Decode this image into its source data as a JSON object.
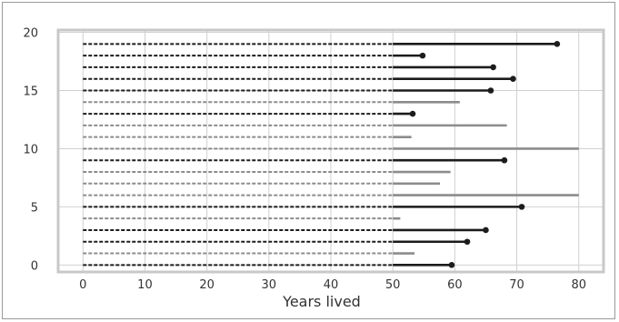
{
  "chart_data": {
    "type": "lifelines",
    "title": "",
    "xlabel": "Years lived",
    "ylabel": "",
    "xlim": [
      -4,
      84
    ],
    "ylim": [
      -0.6,
      20.2
    ],
    "xticks": [
      0,
      10,
      20,
      30,
      40,
      50,
      60,
      70,
      80
    ],
    "yticks": [
      0,
      5,
      10,
      15,
      20
    ],
    "grid": true,
    "legend": "none",
    "colors": {
      "observed": "#1c1c1c",
      "censored": "#8c8c8c",
      "grid": "#d0d0d0",
      "frame": "#c8c8c8"
    },
    "subjects": [
      {
        "y": 0,
        "start": 0,
        "obs_start": 50,
        "end": 59.5,
        "observed": true
      },
      {
        "y": 1,
        "start": 0,
        "obs_start": 50,
        "end": 53.5,
        "observed": false
      },
      {
        "y": 2,
        "start": 0,
        "obs_start": 50,
        "end": 62.0,
        "observed": true
      },
      {
        "y": 3,
        "start": 0,
        "obs_start": 50,
        "end": 65.0,
        "observed": true
      },
      {
        "y": 4,
        "start": 0,
        "obs_start": 50,
        "end": 51.2,
        "observed": false
      },
      {
        "y": 5,
        "start": 0,
        "obs_start": 50,
        "end": 70.8,
        "observed": true
      },
      {
        "y": 6,
        "start": 0,
        "obs_start": 50,
        "end": 80.0,
        "observed": false
      },
      {
        "y": 7,
        "start": 0,
        "obs_start": 50,
        "end": 57.6,
        "observed": false
      },
      {
        "y": 8,
        "start": 0,
        "obs_start": 50,
        "end": 59.3,
        "observed": false
      },
      {
        "y": 9,
        "start": 0,
        "obs_start": 50,
        "end": 68.0,
        "observed": true
      },
      {
        "y": 10,
        "start": 0,
        "obs_start": 50,
        "end": 80.0,
        "observed": false
      },
      {
        "y": 11,
        "start": 0,
        "obs_start": 50,
        "end": 53.0,
        "observed": false
      },
      {
        "y": 12,
        "start": 0,
        "obs_start": 50,
        "end": 68.4,
        "observed": false
      },
      {
        "y": 13,
        "start": 0,
        "obs_start": 50,
        "end": 53.2,
        "observed": true
      },
      {
        "y": 14,
        "start": 0,
        "obs_start": 50,
        "end": 60.8,
        "observed": false
      },
      {
        "y": 15,
        "start": 0,
        "obs_start": 50,
        "end": 65.8,
        "observed": true
      },
      {
        "y": 16,
        "start": 0,
        "obs_start": 50,
        "end": 69.4,
        "observed": true
      },
      {
        "y": 17,
        "start": 0,
        "obs_start": 50,
        "end": 66.2,
        "observed": true
      },
      {
        "y": 18,
        "start": 0,
        "obs_start": 50,
        "end": 54.8,
        "observed": true
      },
      {
        "y": 19,
        "start": 0,
        "obs_start": 50,
        "end": 76.5,
        "observed": true
      }
    ]
  }
}
